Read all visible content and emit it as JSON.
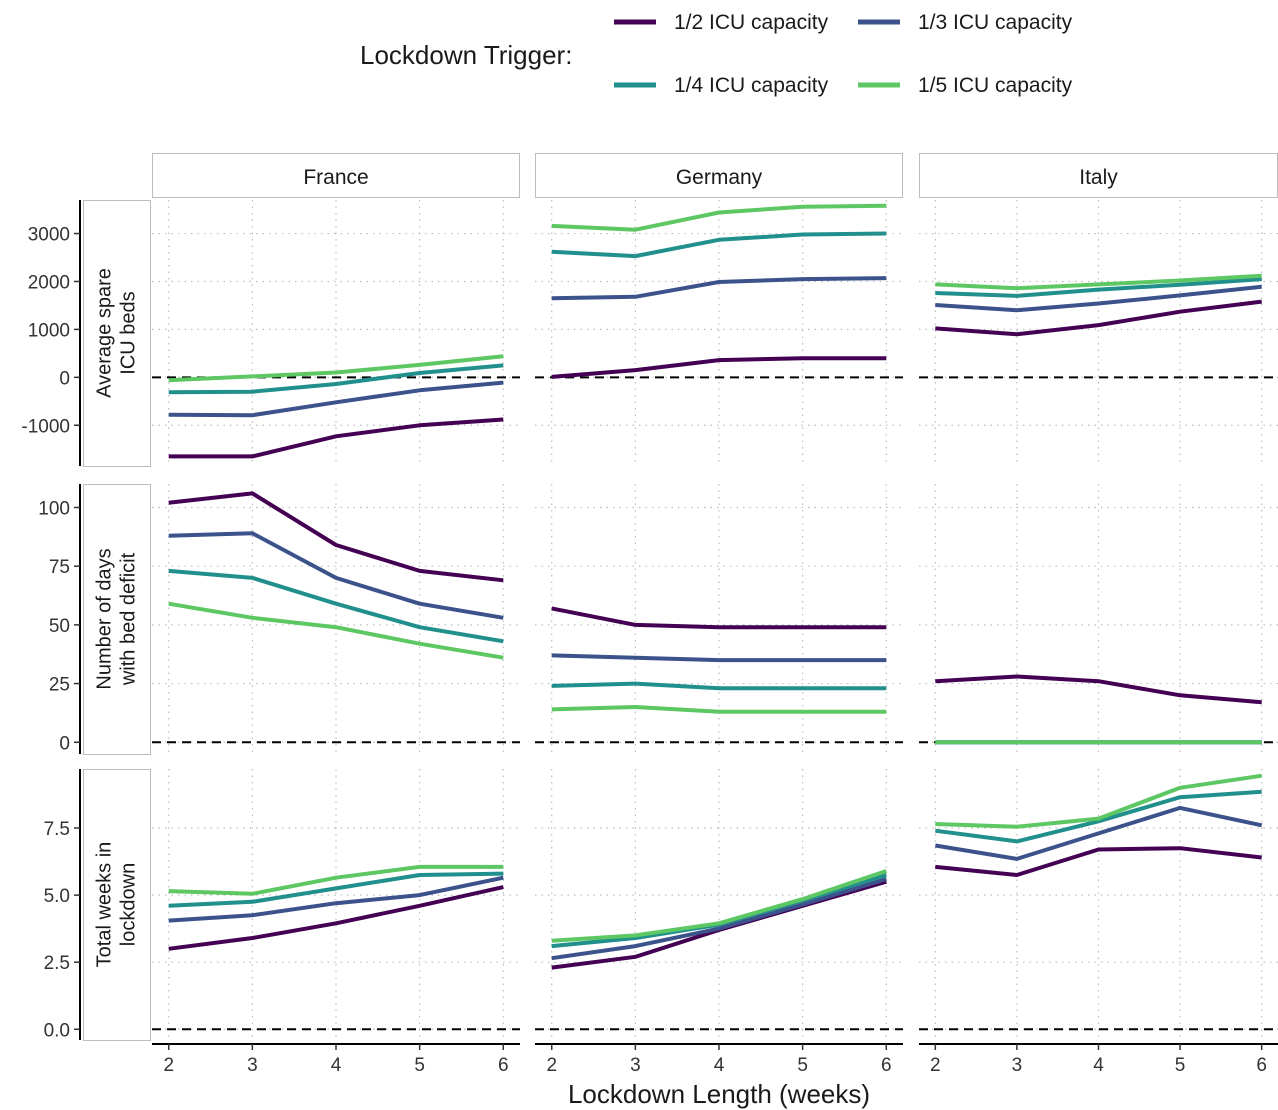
{
  "chart_data": {
    "type": "line",
    "legend": {
      "title": "Lockdown Trigger:",
      "placement": "top"
    },
    "xlabel": "Lockdown Length (weeks)",
    "x": [
      2,
      3,
      4,
      5,
      6
    ],
    "x_ticks": [
      "2",
      "3",
      "4",
      "5",
      "6"
    ],
    "xlim": [
      1.8,
      6.2
    ],
    "colors": [
      "#440154",
      "#3b528b",
      "#21908c",
      "#5dc863"
    ],
    "series_names": [
      "1/2 ICU capacity",
      "1/3 ICU capacity",
      "1/4 ICU capacity",
      "1/5 ICU capacity"
    ],
    "columns": [
      "France",
      "Germany",
      "Italy"
    ],
    "grid": true,
    "reference_line": 0,
    "rows": [
      {
        "ylabel_lines": [
          "Average spare",
          "ICU beds"
        ],
        "ylim": [
          -1850,
          3700
        ],
        "y_ticks": [
          -1000,
          0,
          1000,
          2000,
          3000
        ],
        "y_tick_labels": [
          "-1000",
          "0",
          "1000",
          "2000",
          "3000"
        ],
        "panels": [
          [
            [
              -1650,
              -1650,
              -1230,
              -1000,
              -880
            ],
            [
              -780,
              -790,
              -520,
              -270,
              -110
            ],
            [
              -310,
              -300,
              -140,
              90,
              250
            ],
            [
              -60,
              20,
              100,
              260,
              440
            ]
          ],
          [
            [
              10,
              150,
              360,
              400,
              400
            ],
            [
              1650,
              1680,
              1990,
              2050,
              2070
            ],
            [
              2620,
              2530,
              2870,
              2980,
              3000
            ],
            [
              3160,
              3080,
              3440,
              3560,
              3580
            ]
          ],
          [
            [
              1020,
              900,
              1090,
              1370,
              1580
            ],
            [
              1510,
              1400,
              1540,
              1710,
              1890
            ],
            [
              1760,
              1700,
              1830,
              1930,
              2050
            ],
            [
              1940,
              1860,
              1940,
              2020,
              2120
            ]
          ]
        ]
      },
      {
        "ylabel_lines": [
          "Number of days",
          "with bed deficit"
        ],
        "ylim": [
          -5,
          110
        ],
        "y_ticks": [
          0,
          25,
          50,
          75,
          100
        ],
        "y_tick_labels": [
          "0",
          "25",
          "50",
          "75",
          "100"
        ],
        "panels": [
          [
            [
              102,
              106,
              84,
              73,
              69
            ],
            [
              88,
              89,
              70,
              59,
              53
            ],
            [
              73,
              70,
              59,
              49,
              43
            ],
            [
              59,
              53,
              49,
              42,
              36
            ]
          ],
          [
            [
              57,
              50,
              49,
              49,
              49
            ],
            [
              37,
              36,
              35,
              35,
              35
            ],
            [
              24,
              25,
              23,
              23,
              23
            ],
            [
              14,
              15,
              13,
              13,
              13
            ]
          ],
          [
            [
              26,
              28,
              26,
              20,
              17
            ],
            [
              0,
              0,
              0,
              0,
              0
            ],
            [
              0,
              0,
              0,
              0,
              0
            ],
            [
              0,
              0,
              0,
              0,
              0
            ]
          ]
        ]
      },
      {
        "ylabel_lines": [
          "Total weeks in",
          "lockdown"
        ],
        "ylim": [
          -0.4,
          9.7
        ],
        "y_ticks": [
          0,
          2.5,
          5,
          7.5
        ],
        "y_tick_labels": [
          "0.0",
          "2.5",
          "5.0",
          "7.5"
        ],
        "panels": [
          [
            [
              3.0,
              3.4,
              3.95,
              4.6,
              5.3
            ],
            [
              4.05,
              4.25,
              4.7,
              5.0,
              5.65
            ],
            [
              4.6,
              4.75,
              5.25,
              5.75,
              5.8
            ],
            [
              5.15,
              5.05,
              5.65,
              6.05,
              6.05
            ]
          ],
          [
            [
              2.3,
              2.7,
              3.7,
              4.6,
              5.5
            ],
            [
              2.65,
              3.1,
              3.75,
              4.65,
              5.6
            ],
            [
              3.1,
              3.4,
              3.9,
              4.8,
              5.75
            ],
            [
              3.3,
              3.5,
              3.95,
              4.85,
              5.9
            ]
          ],
          [
            [
              6.05,
              5.75,
              6.7,
              6.75,
              6.4
            ],
            [
              6.85,
              6.35,
              7.3,
              8.25,
              7.6
            ],
            [
              7.4,
              7.0,
              7.75,
              8.65,
              8.85
            ],
            [
              7.65,
              7.55,
              7.85,
              9.0,
              9.45
            ]
          ]
        ]
      }
    ]
  }
}
